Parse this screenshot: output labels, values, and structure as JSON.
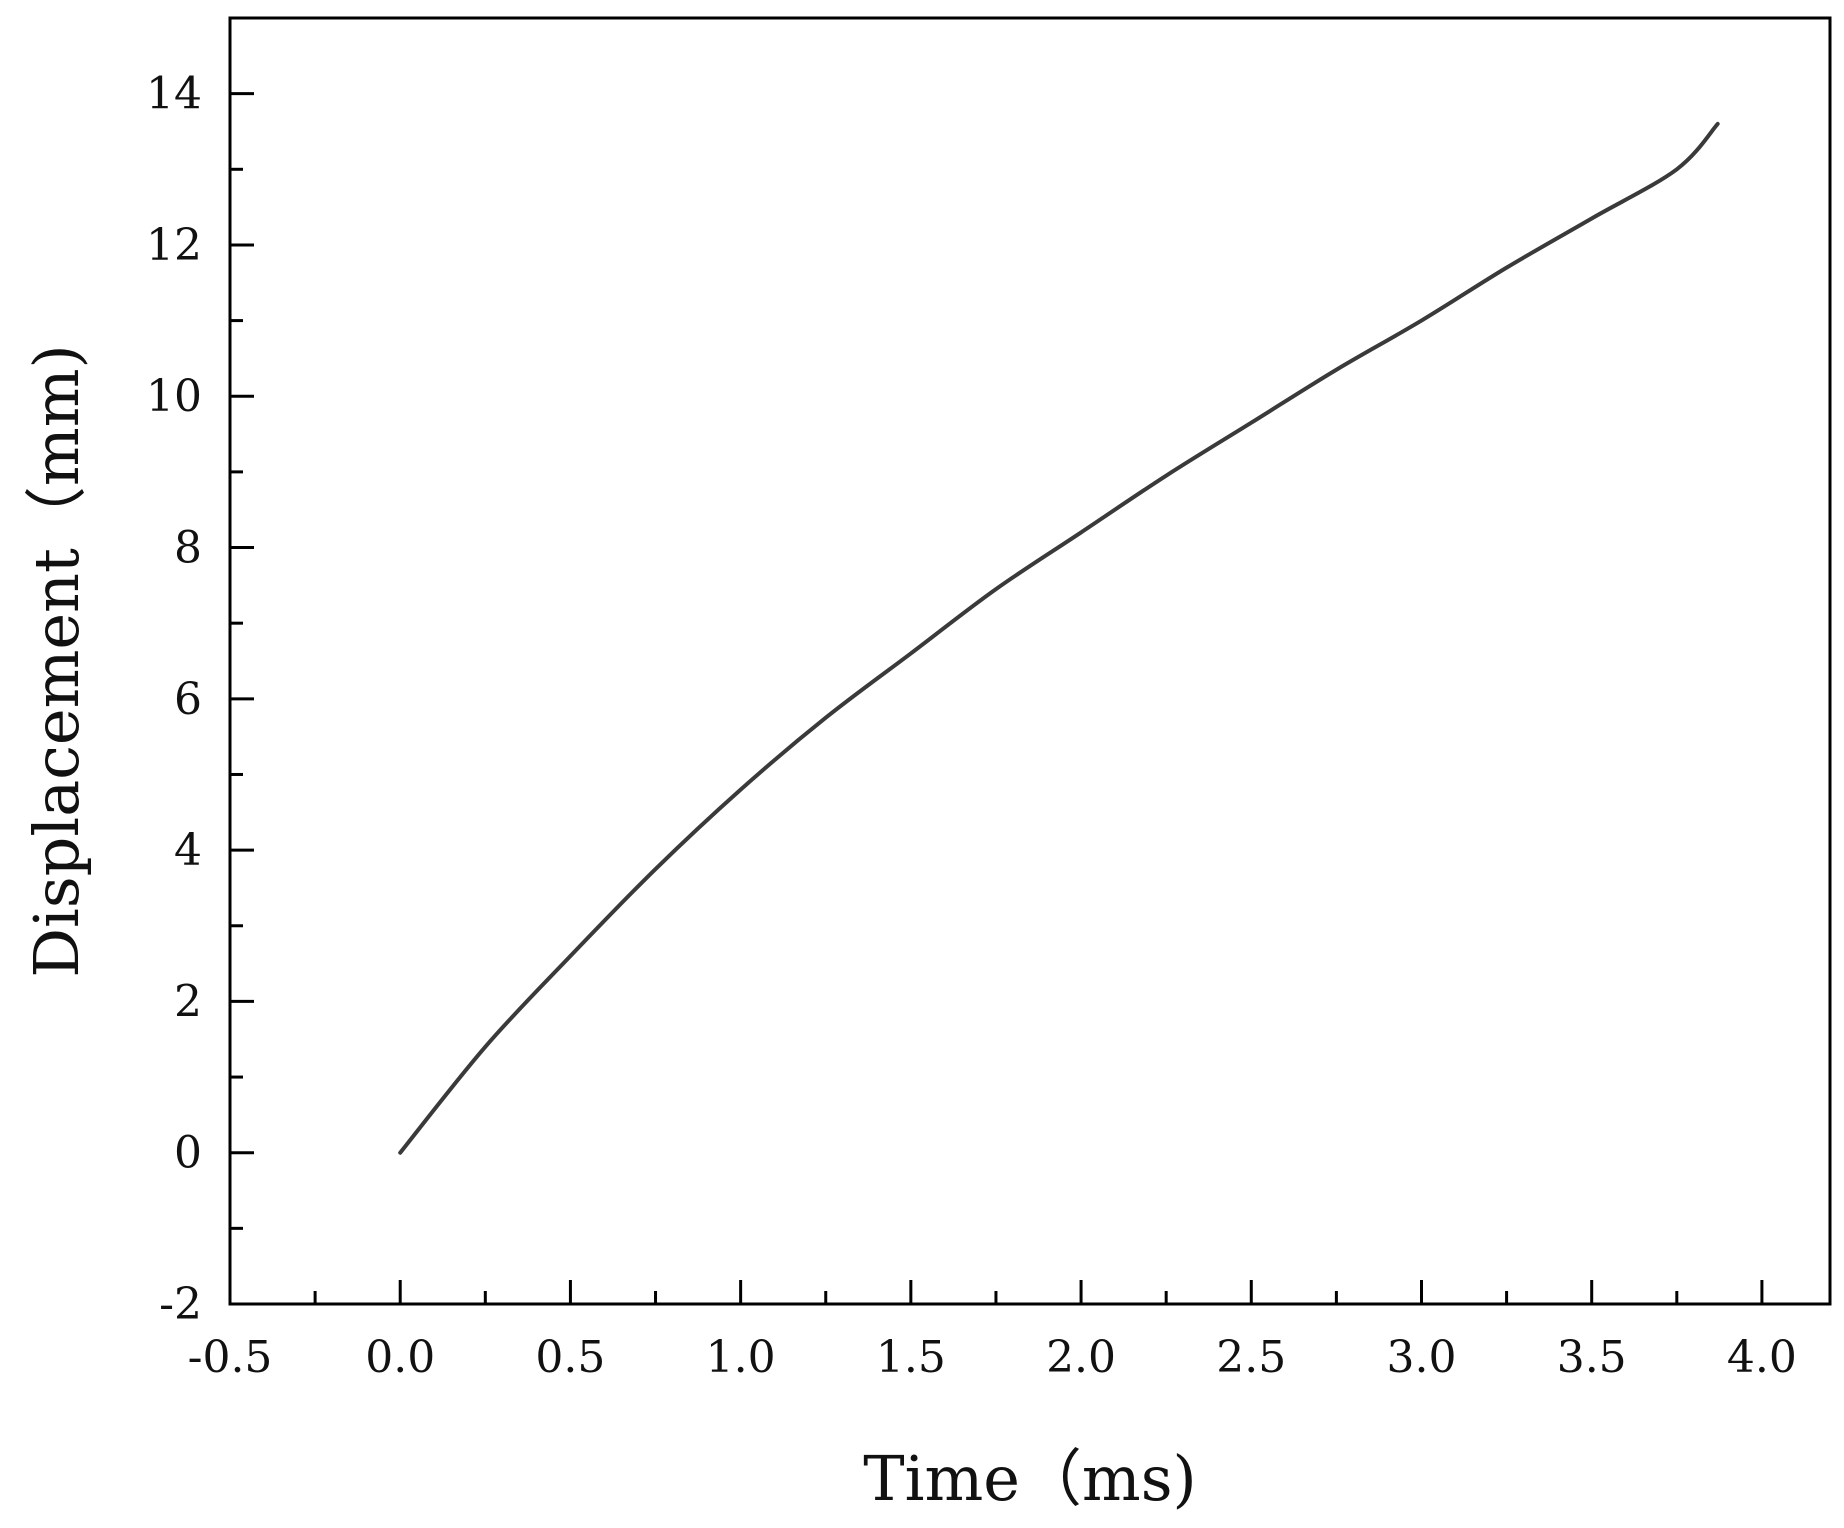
{
  "chart_data": {
    "type": "line",
    "title": "",
    "xlabel": "Time（ms)",
    "ylabel": "Displacement（mm)",
    "xlim": [
      -0.5,
      4.2
    ],
    "ylim": [
      -2,
      15
    ],
    "x_ticks": [
      -0.5,
      0.0,
      0.5,
      1.0,
      1.5,
      2.0,
      2.5,
      3.0,
      3.5,
      4.0
    ],
    "x_tick_labels": [
      "-0.5",
      "0.0",
      "0.5",
      "1.0",
      "1.5",
      "2.0",
      "2.5",
      "3.0",
      "3.5",
      "4.0"
    ],
    "y_ticks": [
      -2,
      0,
      2,
      4,
      6,
      8,
      10,
      12,
      14
    ],
    "y_tick_labels": [
      "-2",
      "0",
      "2",
      "4",
      "6",
      "8",
      "10",
      "12",
      "14"
    ],
    "x_minor_ticks": [
      -0.25,
      0.25,
      0.75,
      1.25,
      1.75,
      2.25,
      2.75,
      3.25,
      3.75
    ],
    "y_minor_ticks": [
      -1,
      1,
      3,
      5,
      7,
      9,
      11,
      13
    ],
    "grid": false,
    "legend": "none",
    "line_color": "#3a3a3a",
    "series": [
      {
        "x": [
          0.0,
          0.25,
          0.5,
          0.75,
          1.0,
          1.25,
          1.5,
          1.75,
          2.0,
          2.25,
          2.5,
          2.75,
          3.0,
          3.25,
          3.5,
          3.75,
          3.87
        ],
        "y": [
          0.0,
          1.4,
          2.6,
          3.75,
          4.8,
          5.75,
          6.6,
          7.45,
          8.2,
          8.95,
          9.65,
          10.35,
          11.0,
          11.7,
          12.35,
          13.0,
          13.6
        ]
      }
    ]
  }
}
